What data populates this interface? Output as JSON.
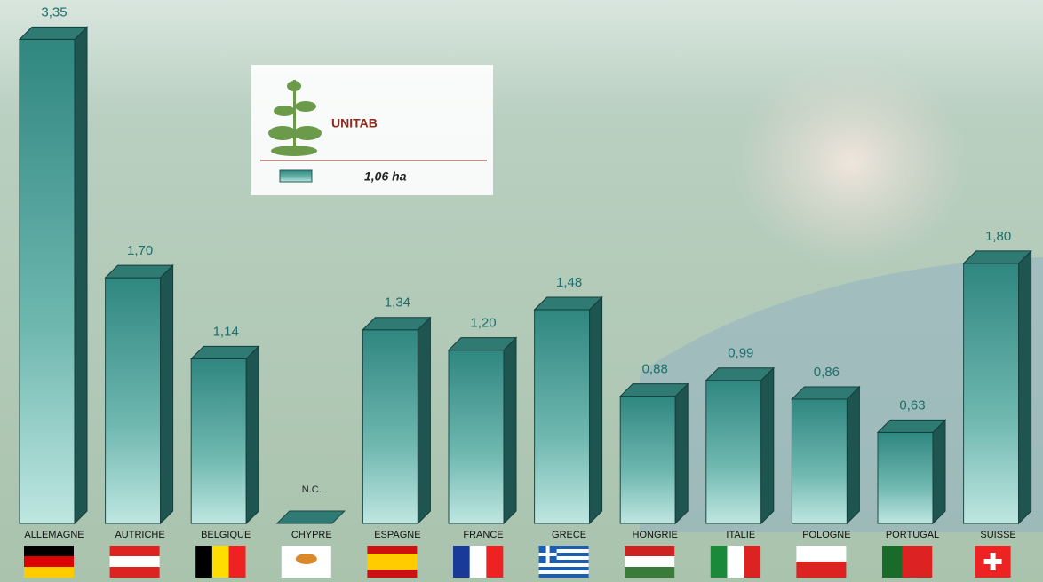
{
  "chart_data": {
    "type": "bar",
    "brand": "UNITAB",
    "categories": [
      "ALLEMAGNE",
      "AUTRICHE",
      "BELGIQUE",
      "CHYPRE",
      "ESPAGNE",
      "FRANCE",
      "GRECE",
      "HONGRIE",
      "ITALIE",
      "POLOGNE",
      "PORTUGAL",
      "SUISSE"
    ],
    "series": [
      {
        "name": "1,06 ha",
        "color": "#3a968c",
        "values": [
          3.35,
          1.7,
          1.14,
          null,
          1.34,
          1.2,
          1.48,
          0.88,
          0.99,
          0.86,
          0.63,
          1.8
        ],
        "value_labels": [
          "3,35",
          "1,70",
          "1,14",
          "N.C.",
          "1,34",
          "1,20",
          "1,48",
          "0,88",
          "0,99",
          "0,86",
          "0,63",
          "1,80"
        ]
      }
    ],
    "ylim": [
      0,
      3.5
    ]
  }
}
